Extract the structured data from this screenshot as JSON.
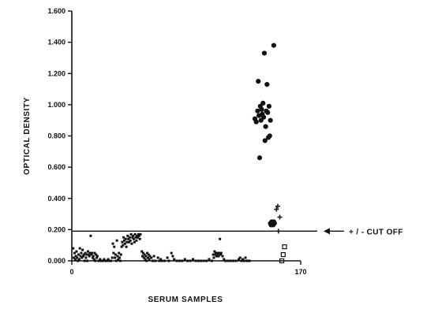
{
  "chart_data": {
    "type": "scatter",
    "title": "",
    "xlabel": "SERUM SAMPLES",
    "ylabel": "OPTICAL DENSITY",
    "xlim": [
      0,
      170
    ],
    "ylim": [
      0,
      1.6
    ],
    "x_ticks": [
      {
        "value": 0,
        "label": "0"
      },
      {
        "value": 170,
        "label": "170"
      }
    ],
    "y_ticks": [
      {
        "value": 0,
        "label": "0.000"
      },
      {
        "value": 0.2,
        "label": "0.200"
      },
      {
        "value": 0.4,
        "label": "0.400"
      },
      {
        "value": 0.6,
        "label": "0.600"
      },
      {
        "value": 0.8,
        "label": "0.800"
      },
      {
        "value": 1.0,
        "label": "1.000"
      },
      {
        "value": 1.2,
        "label": "1.200"
      },
      {
        "value": 1.4,
        "label": "1.400"
      },
      {
        "value": 1.6,
        "label": "1.600"
      }
    ],
    "grid": false,
    "legend": null,
    "cutoff": {
      "value": 0.19,
      "label": "+ / - CUT OFF"
    },
    "series": [
      {
        "marker": "square",
        "color": "#111111",
        "points": [
          [
            1,
            0.08
          ],
          [
            1.5,
            0.02
          ],
          [
            2,
            0.05
          ],
          [
            2.5,
            0.01
          ],
          [
            3,
            0.03
          ],
          [
            3.5,
            0.06
          ],
          [
            4,
            0.02
          ],
          [
            4.5,
            0.0
          ],
          [
            5,
            0.04
          ],
          [
            5.5,
            0.01
          ],
          [
            6,
            0.08
          ],
          [
            6.5,
            0.03
          ],
          [
            7,
            0.05
          ],
          [
            7.5,
            0.02
          ],
          [
            8,
            0.07
          ],
          [
            8.5,
            0.03
          ],
          [
            9,
            0.04
          ],
          [
            9.5,
            0.0
          ],
          [
            10,
            0.05
          ],
          [
            10.5,
            0.02
          ],
          [
            11,
            0.04
          ],
          [
            11.5,
            0.0
          ],
          [
            12,
            0.06
          ],
          [
            12.5,
            0.04
          ],
          [
            13,
            0.03
          ],
          [
            13.5,
            0.05
          ],
          [
            14,
            0.16
          ],
          [
            14.5,
            0.04
          ],
          [
            15,
            0.05
          ],
          [
            15.5,
            0.02
          ],
          [
            16,
            0.03
          ],
          [
            16.5,
            0.01
          ],
          [
            17,
            0.05
          ],
          [
            17.5,
            0.0
          ],
          [
            18,
            0.04
          ],
          [
            18.5,
            0.02
          ],
          [
            19,
            0.03
          ],
          [
            20,
            0.0
          ],
          [
            21,
            0.01
          ],
          [
            22,
            0.0
          ],
          [
            23,
            0.0
          ],
          [
            24,
            0.01
          ],
          [
            25,
            0.0
          ],
          [
            26,
            0.0
          ],
          [
            27,
            0.01
          ],
          [
            28,
            0.0
          ],
          [
            29,
            0.0
          ],
          [
            30,
            0.02
          ],
          [
            30.5,
            0.11
          ],
          [
            31,
            0.05
          ],
          [
            31.5,
            0.09
          ],
          [
            32,
            0.02
          ],
          [
            32.5,
            0.04
          ],
          [
            33,
            0.0
          ],
          [
            33.5,
            0.13
          ],
          [
            34,
            0.03
          ],
          [
            34.5,
            0.01
          ],
          [
            35,
            0.05
          ],
          [
            35.5,
            0.02
          ],
          [
            36,
            0.0
          ],
          [
            36.5,
            0.04
          ],
          [
            37,
            0.09
          ],
          [
            37.5,
            0.12
          ],
          [
            38,
            0.1
          ],
          [
            38.5,
            0.15
          ],
          [
            39,
            0.13
          ],
          [
            39.5,
            0.11
          ],
          [
            40,
            0.14
          ],
          [
            40.5,
            0.09
          ],
          [
            41,
            0.12
          ],
          [
            41.5,
            0.16
          ],
          [
            42,
            0.14
          ],
          [
            42.5,
            0.12
          ],
          [
            43,
            0.15
          ],
          [
            43.5,
            0.13
          ],
          [
            44,
            0.17
          ],
          [
            44.5,
            0.11
          ],
          [
            45,
            0.15
          ],
          [
            45.5,
            0.16
          ],
          [
            46,
            0.14
          ],
          [
            46.5,
            0.12
          ],
          [
            47,
            0.17
          ],
          [
            47.5,
            0.15
          ],
          [
            48,
            0.13
          ],
          [
            48.5,
            0.16
          ],
          [
            49,
            0.15
          ],
          [
            49.5,
            0.17
          ],
          [
            50,
            0.16
          ],
          [
            50.5,
            0.14
          ],
          [
            51,
            0.17
          ],
          [
            52,
            0.06
          ],
          [
            52.5,
            0.03
          ],
          [
            53,
            0.05
          ],
          [
            53.5,
            0.02
          ],
          [
            54,
            0.04
          ],
          [
            54.5,
            0.01
          ],
          [
            55,
            0.03
          ],
          [
            55.5,
            0.0
          ],
          [
            56,
            0.05
          ],
          [
            56.5,
            0.02
          ],
          [
            57,
            0.04
          ],
          [
            57.5,
            0.01
          ],
          [
            58,
            0.03
          ],
          [
            59,
            0.02
          ],
          [
            60,
            0.0
          ],
          [
            61,
            0.03
          ],
          [
            62,
            0.0
          ],
          [
            64,
            0.02
          ],
          [
            65,
            0.0
          ],
          [
            66,
            0.01
          ],
          [
            67,
            0.0
          ],
          [
            69,
            0.0
          ],
          [
            71,
            0.02
          ],
          [
            72,
            0.0
          ],
          [
            74,
            0.05
          ],
          [
            75,
            0.03
          ],
          [
            76,
            0.01
          ],
          [
            78,
            0.0
          ],
          [
            80,
            0.0
          ],
          [
            82,
            0.0
          ],
          [
            84,
            0.01
          ],
          [
            86,
            0.0
          ],
          [
            88,
            0.0
          ],
          [
            90,
            0.01
          ],
          [
            92,
            0.0
          ],
          [
            94,
            0.0
          ],
          [
            96,
            0.0
          ],
          [
            98,
            0.0
          ],
          [
            100,
            0.0
          ],
          [
            102,
            0.01
          ],
          [
            104,
            0.0
          ],
          [
            105,
            0.04
          ],
          [
            105.5,
            0.02
          ],
          [
            106,
            0.06
          ],
          [
            106.5,
            0.04
          ],
          [
            107,
            0.05
          ],
          [
            107.5,
            0.03
          ],
          [
            108,
            0.05
          ],
          [
            108.5,
            0.04
          ],
          [
            109,
            0.03
          ],
          [
            109.5,
            0.05
          ],
          [
            110,
            0.14
          ],
          [
            110.5,
            0.04
          ],
          [
            111,
            0.05
          ],
          [
            112,
            0.03
          ],
          [
            113,
            0.01
          ],
          [
            114,
            0.0
          ],
          [
            116,
            0.0
          ],
          [
            118,
            0.0
          ],
          [
            120,
            0.0
          ],
          [
            122,
            0.0
          ],
          [
            124,
            0.01
          ],
          [
            125,
            0.02
          ],
          [
            126,
            0.0
          ],
          [
            127,
            0.01
          ],
          [
            128,
            0.0
          ],
          [
            129,
            0.02
          ],
          [
            130,
            0.0
          ],
          [
            131,
            0.0
          ],
          [
            132,
            0.0
          ]
        ]
      },
      {
        "marker": "circle",
        "color": "#111111",
        "points": [
          [
            136,
            0.91
          ],
          [
            137,
            0.89
          ],
          [
            138,
            0.96
          ],
          [
            138.5,
            1.15
          ],
          [
            139,
            0.93
          ],
          [
            139.5,
            0.66
          ],
          [
            140,
            0.99
          ],
          [
            140.5,
            0.9
          ],
          [
            141,
            0.97
          ],
          [
            141.5,
            0.94
          ],
          [
            142,
            1.01
          ],
          [
            142.5,
            0.92
          ],
          [
            143,
            1.33
          ],
          [
            143.5,
            0.77
          ],
          [
            144,
            0.86
          ],
          [
            144.5,
            0.96
          ],
          [
            145,
            1.13
          ],
          [
            145.5,
            0.95
          ],
          [
            146,
            0.79
          ],
          [
            146.5,
            0.99
          ],
          [
            147,
            0.8
          ],
          [
            147.5,
            0.9
          ],
          [
            150,
            1.38
          ]
        ]
      },
      {
        "marker": "circle",
        "color": "#111111",
        "points": [
          [
            147.5,
            0.24
          ],
          [
            148,
            0.23
          ],
          [
            148.5,
            0.25
          ],
          [
            149,
            0.24
          ],
          [
            149.5,
            0.23
          ],
          [
            150,
            0.25
          ],
          [
            150.5,
            0.24
          ]
        ]
      },
      {
        "marker": "plus",
        "color": "#111111",
        "points": [
          [
            152,
            0.33
          ],
          [
            153,
            0.35
          ],
          [
            153.5,
            0.19
          ],
          [
            154.5,
            0.28
          ]
        ]
      },
      {
        "marker": "open-square",
        "color": "#111111",
        "points": [
          [
            158,
            0.09
          ],
          [
            157,
            0.04
          ],
          [
            156,
            0.0
          ]
        ]
      }
    ]
  }
}
